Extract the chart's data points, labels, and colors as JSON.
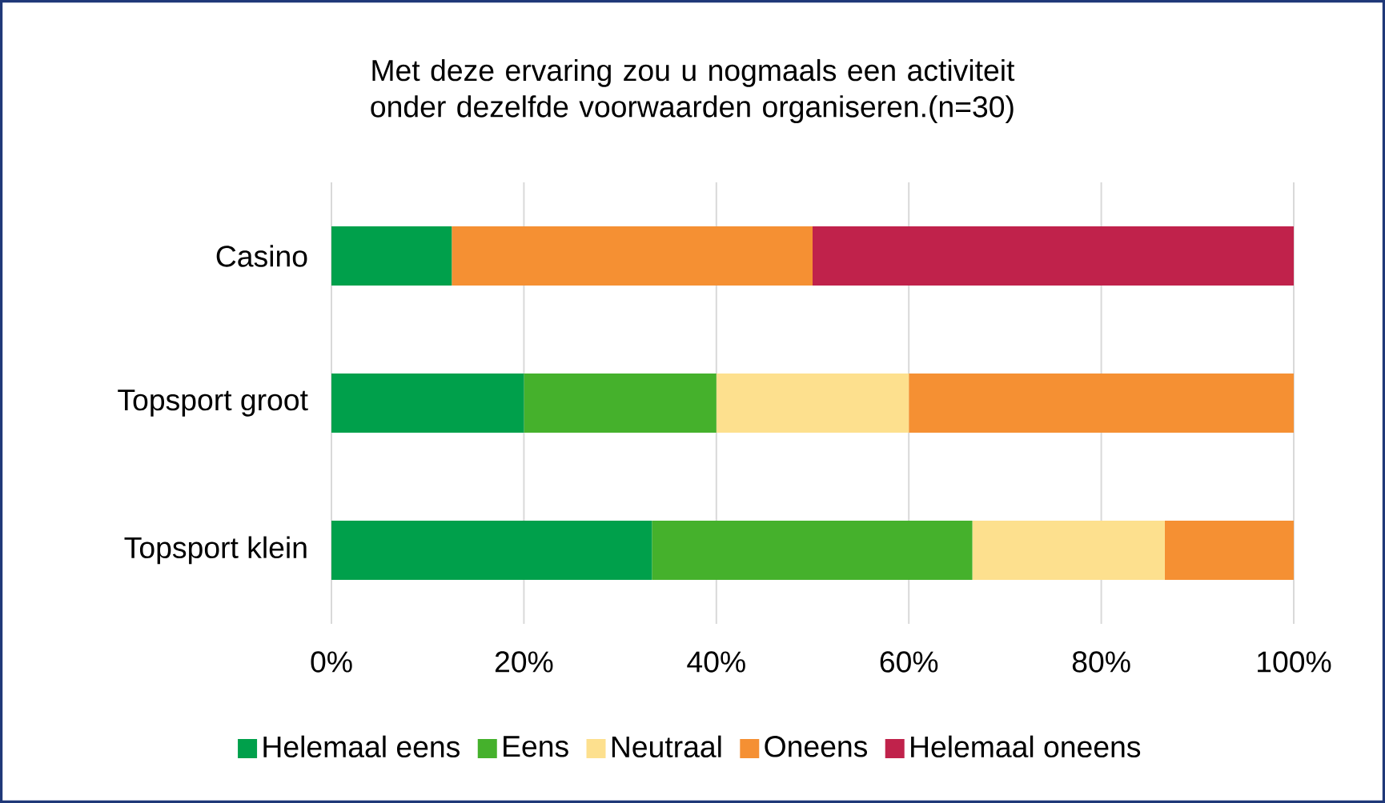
{
  "chart_data": {
    "type": "bar",
    "orientation": "horizontal",
    "stacked": true,
    "title": "Met deze ervaring zou u nogmaals een activiteit onder dezelfde voorwaarden organiseren.(n=30)",
    "categories": [
      "Casino",
      "Topsport groot",
      "Topsport klein"
    ],
    "series": [
      {
        "name": "Helemaal eens",
        "color": "#00a04b",
        "values": [
          12.5,
          20,
          33.3
        ]
      },
      {
        "name": "Eens",
        "color": "#45b12c",
        "values": [
          0,
          20,
          33.3
        ]
      },
      {
        "name": "Neutraal",
        "color": "#fde08e",
        "values": [
          0,
          20,
          20
        ]
      },
      {
        "name": "Oneens",
        "color": "#f59033",
        "values": [
          37.5,
          40,
          13.4
        ]
      },
      {
        "name": "Helemaal oneens",
        "color": "#c0224b",
        "values": [
          50,
          0,
          0
        ]
      }
    ],
    "xlim": [
      0,
      100
    ],
    "xticks": [
      {
        "value": 0,
        "label": "0%"
      },
      {
        "value": 20,
        "label": "20%"
      },
      {
        "value": 40,
        "label": "40%"
      },
      {
        "value": 60,
        "label": "60%"
      },
      {
        "value": 80,
        "label": "80%"
      },
      {
        "value": 100,
        "label": "100%"
      }
    ],
    "grid": "x",
    "legend": "bottom"
  }
}
